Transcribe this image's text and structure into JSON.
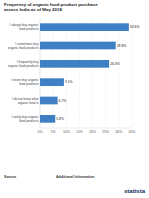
{
  "chart_data": {
    "type": "bar",
    "orientation": "horizontal",
    "title": "Frequency of organic food product purchase across India as of May 2018",
    "categories": [
      "I always buy organic food products",
      "I sometimes buy organic food products",
      "I frequently buy organic food products",
      "I never buy organic food products",
      "I do not know what organic food is",
      "I rarely buy organic food products"
    ],
    "values": [
      33.8,
      28.8,
      26.3,
      9.1,
      6.7,
      5.8
    ],
    "value_labels": [
      "33.8%",
      "28.8%",
      "26.3%",
      "9.1%",
      "6.7%",
      "5.8%"
    ],
    "data_labels": true,
    "color": "#3f7fc4",
    "xlim": [
      0,
      35
    ],
    "xticks": [
      {
        "value": 0,
        "label": "0%"
      },
      {
        "value": 5,
        "label": "5%"
      },
      {
        "value": 10,
        "label": "10%"
      },
      {
        "value": 15,
        "label": "15%"
      },
      {
        "value": 20,
        "label": "20%"
      },
      {
        "value": 25,
        "label": "25%"
      },
      {
        "value": 30,
        "label": "30%"
      },
      {
        "value": 35,
        "label": "35%"
      }
    ],
    "grid": true
  },
  "footer": {
    "source": "Source",
    "additional": "Additional Information",
    "brand": "statista"
  }
}
